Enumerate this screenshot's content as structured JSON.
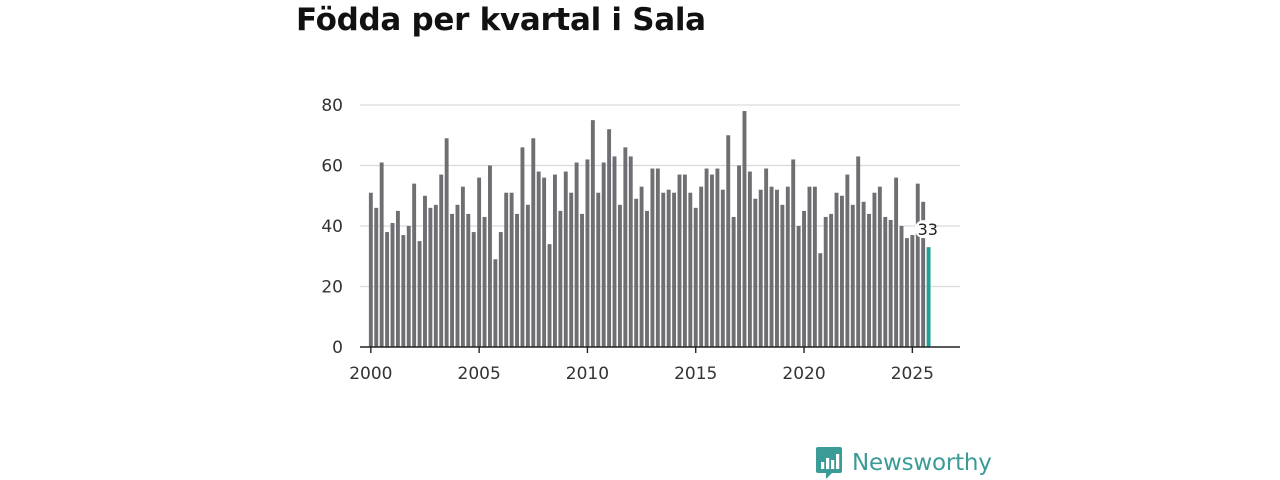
{
  "chart_data": {
    "type": "bar",
    "title": "Födda per kvartal i Sala",
    "xlabel": "",
    "ylabel": "",
    "ylim": [
      0,
      80
    ],
    "yticks": [
      0,
      20,
      40,
      60,
      80
    ],
    "xlim": [
      1999.5,
      2027.2
    ],
    "xticks": [
      2000,
      2005,
      2010,
      2015,
      2020,
      2025
    ],
    "grid": true,
    "start_year": 2000,
    "start_quarter": 1,
    "values": [
      51,
      46,
      61,
      38,
      41,
      45,
      37,
      40,
      54,
      35,
      50,
      46,
      47,
      57,
      69,
      44,
      47,
      53,
      44,
      38,
      56,
      43,
      60,
      29,
      38,
      51,
      51,
      44,
      66,
      47,
      69,
      58,
      56,
      34,
      57,
      45,
      58,
      51,
      61,
      44,
      62,
      75,
      51,
      61,
      72,
      63,
      47,
      66,
      63,
      49,
      53,
      45,
      59,
      59,
      51,
      52,
      51,
      57,
      57,
      51,
      46,
      53,
      59,
      57,
      59,
      52,
      70,
      43,
      60,
      78,
      58,
      49,
      52,
      59,
      53,
      52,
      47,
      53,
      62,
      40,
      45,
      53,
      53,
      31,
      43,
      44,
      51,
      50,
      57,
      47,
      63,
      48,
      44,
      51,
      53,
      43,
      42,
      56,
      40,
      36,
      37,
      54,
      48,
      33
    ],
    "highlight": {
      "index": 103,
      "label": "33",
      "color": "#1fa396"
    },
    "colors": {
      "bar": "#6f6f73",
      "highlight": "#1fa396",
      "grid": "#d9d9d9",
      "axis": "#222222"
    }
  },
  "brand": {
    "name": "Newsworthy",
    "color": "#3b9b96"
  }
}
